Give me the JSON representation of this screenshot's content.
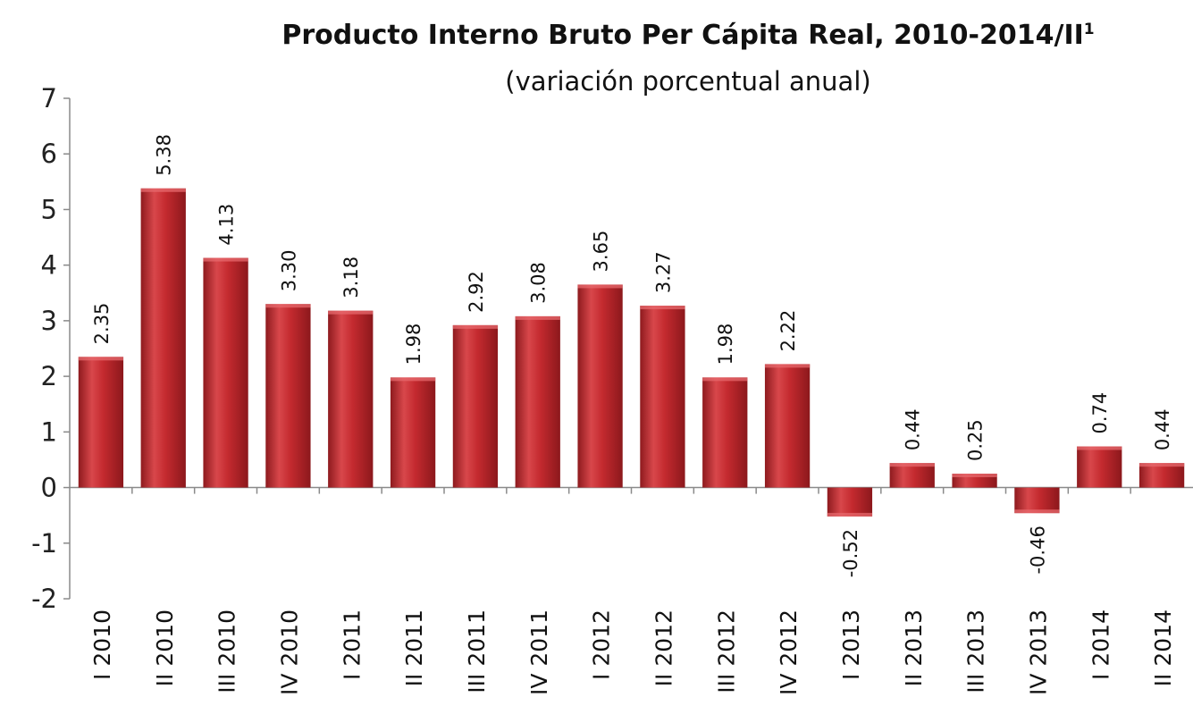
{
  "chart_data": {
    "type": "bar",
    "title": "Producto Interno Bruto Per Cápita Real, 2010-2014/II",
    "title_superscript": "1",
    "subtitle": "(variación porcentual anual)",
    "xlabel": "",
    "ylabel": "",
    "ylim": [
      -2,
      7
    ],
    "yticks": [
      -2,
      -1,
      0,
      1,
      2,
      3,
      4,
      5,
      6,
      7
    ],
    "grid": false,
    "legend": "none",
    "bar_color": "#c0282d",
    "categories": [
      "I 2010",
      "II 2010",
      "III 2010",
      "IV 2010",
      "I 2011",
      "II 2011",
      "III 2011",
      "IV 2011",
      "I 2012",
      "II 2012",
      "III 2012",
      "IV 2012",
      "I 2013",
      "II 2013",
      "III 2013",
      "IV 2013",
      "I 2014",
      "II 2014"
    ],
    "values": [
      2.35,
      5.38,
      4.13,
      3.3,
      3.18,
      1.98,
      2.92,
      3.08,
      3.65,
      3.27,
      1.98,
      2.22,
      -0.52,
      0.44,
      0.25,
      -0.46,
      0.74,
      0.44
    ],
    "data_labels": [
      "2.35",
      "5.38",
      "4.13",
      "3.30",
      "3.18",
      "1.98",
      "2.92",
      "3.08",
      "3.65",
      "3.27",
      "1.98",
      "2.22",
      "-0.52",
      "0.44",
      "0.25",
      "-0.46",
      "0.74",
      "0.44"
    ]
  }
}
